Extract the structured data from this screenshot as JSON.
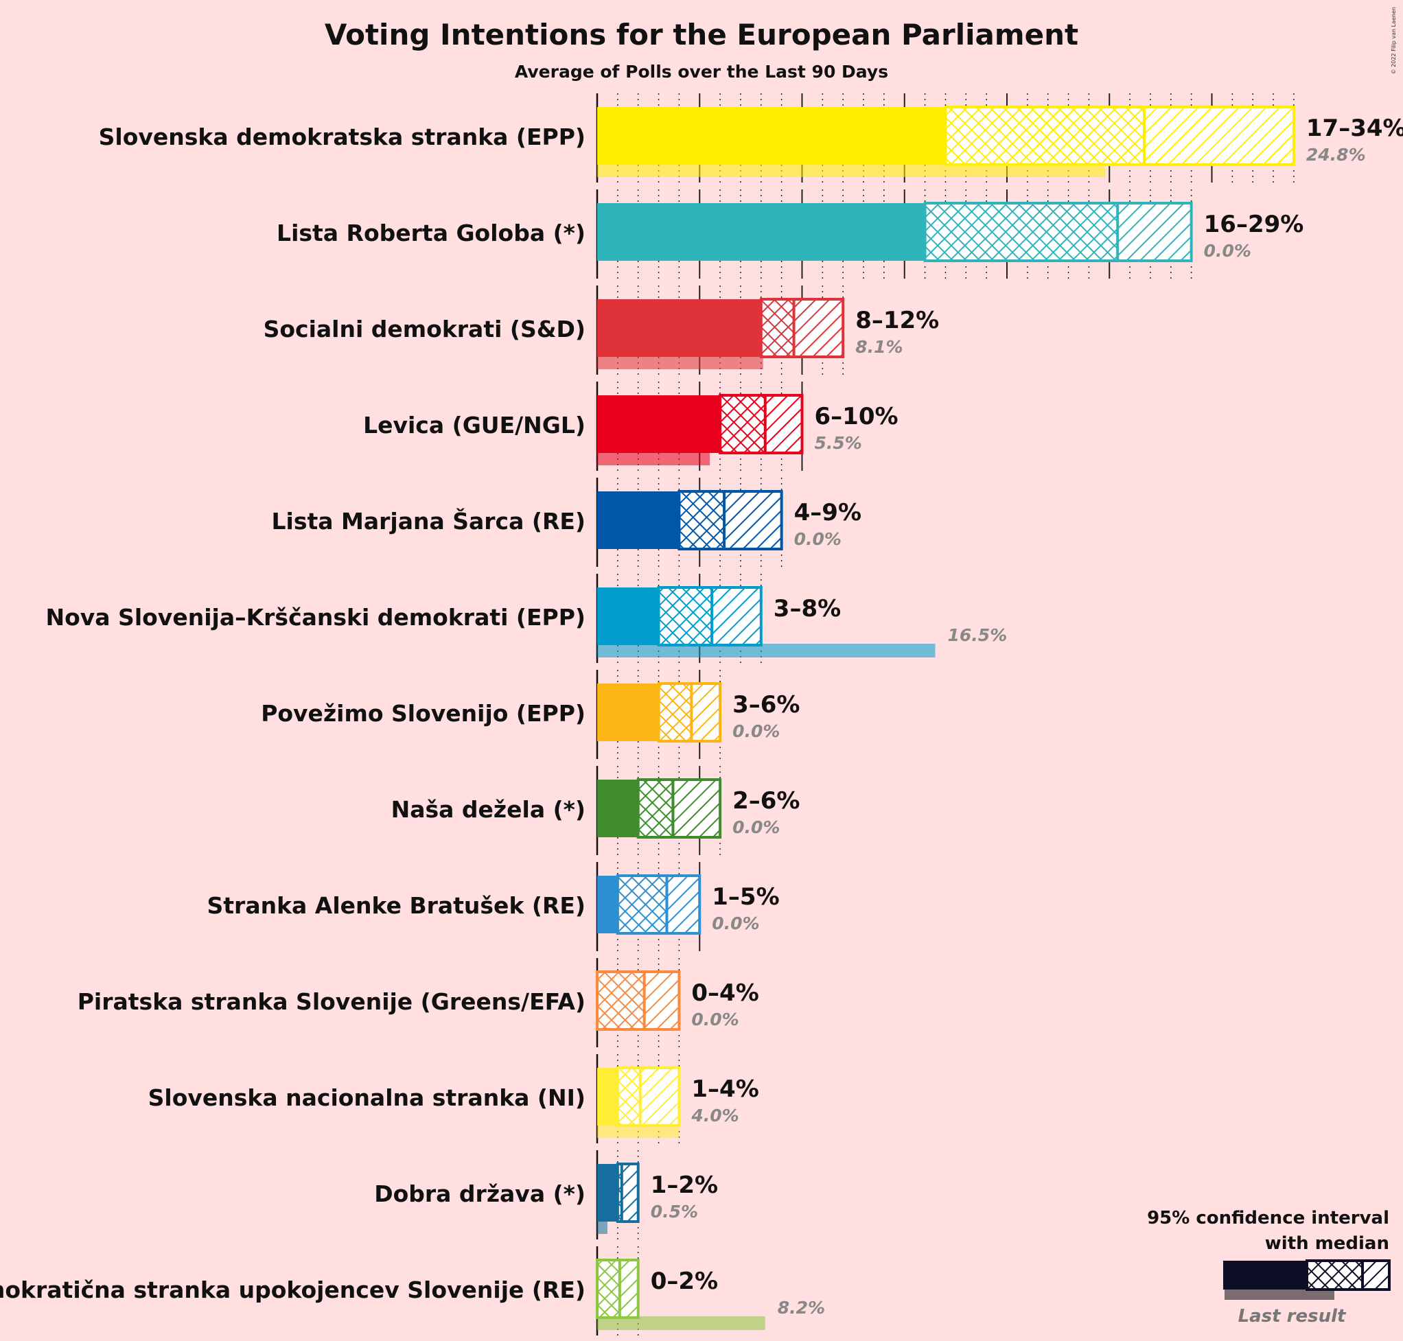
{
  "title": "Voting Intentions for the European Parliament",
  "subtitle": "Average of Polls over the Last 90 Days",
  "copyright": "© 2022 Filip van Laenen",
  "legend": {
    "ci_line1": "95% confidence interval",
    "ci_line2": "with median",
    "last_result": "Last result"
  },
  "chart_data": {
    "type": "bar",
    "orientation": "horizontal",
    "value_unit": "%",
    "series": [
      {
        "party": "Slovenska demokratska stranka (EPP)",
        "low": 17,
        "q_low": 25.7,
        "median": 26.7,
        "q_high": 31.0,
        "high": 34,
        "range_label": "17–34%",
        "last_result": 24.8,
        "last_label": "24.8%",
        "color": "#ffee00"
      },
      {
        "party": "Lista Roberta Goloba (*)",
        "low": 16,
        "q_low": 25.4,
        "median": 25.4,
        "q_high": 25.4,
        "high": 29,
        "range_label": "16–29%",
        "last_result": 0.0,
        "last_label": "0.0%",
        "color": "#30b4bc"
      },
      {
        "party": "Socialni demokrati (S&D)",
        "low": 8,
        "q_low": 9.6,
        "median": 9.6,
        "q_high": 9.6,
        "high": 12,
        "range_label": "8–12%",
        "last_result": 8.1,
        "last_label": "8.1%",
        "color": "#e03339"
      },
      {
        "party": "Levica (GUE/NGL)",
        "low": 6,
        "q_low": 8.2,
        "median": 8.2,
        "q_high": 8.2,
        "high": 10,
        "range_label": "6–10%",
        "last_result": 5.5,
        "last_label": "5.5%",
        "color": "#e8001c"
      },
      {
        "party": "Lista Marjana Šarca (RE)",
        "low": 4,
        "q_low": 6.2,
        "median": 6.2,
        "q_high": 6.2,
        "high": 9,
        "range_label": "4–9%",
        "last_result": 0.0,
        "last_label": "0.0%",
        "color": "#0057a8"
      },
      {
        "party": "Nova Slovenija–Krščanski demokrati (EPP)",
        "low": 3,
        "q_low": 5.6,
        "median": 5.6,
        "q_high": 5.6,
        "high": 8,
        "range_label": "3–8%",
        "last_result": 16.5,
        "last_label": "16.5%",
        "color": "#009ccc"
      },
      {
        "party": "Povežimo Slovenijo (EPP)",
        "low": 3,
        "q_low": 4.6,
        "median": 4.6,
        "q_high": 4.6,
        "high": 6,
        "range_label": "3–6%",
        "last_result": 0.0,
        "last_label": "0.0%",
        "color": "#fbb615"
      },
      {
        "party": "Naša dežela (*)",
        "low": 2,
        "q_low": 3.7,
        "median": 3.7,
        "q_high": 3.7,
        "high": 6,
        "range_label": "2–6%",
        "last_result": 0.0,
        "last_label": "0.0%",
        "color": "#3f8c2f"
      },
      {
        "party": "Stranka Alenke Bratušek (RE)",
        "low": 1,
        "q_low": 3.4,
        "median": 3.4,
        "q_high": 3.4,
        "high": 5,
        "range_label": "1–5%",
        "last_result": 0.0,
        "last_label": "0.0%",
        "color": "#2e90d0"
      },
      {
        "party": "Piratska stranka Slovenije (Greens/EFA)",
        "low": 0,
        "q_low": 2.3,
        "median": 2.3,
        "q_high": 2.3,
        "high": 4,
        "range_label": "0–4%",
        "last_result": 0.0,
        "last_label": "0.0%",
        "color": "#fb8a3e"
      },
      {
        "party": "Slovenska nacionalna stranka (NI)",
        "low": 1,
        "q_low": 2.1,
        "median": 2.1,
        "q_high": 2.1,
        "high": 4,
        "range_label": "1–4%",
        "last_result": 4.0,
        "last_label": "4.0%",
        "color": "#ffee33"
      },
      {
        "party": "Dobra država (*)",
        "low": 1,
        "q_low": 1.2,
        "median": 1.2,
        "q_high": 1.2,
        "high": 2,
        "range_label": "1–2%",
        "last_result": 0.5,
        "last_label": "0.5%",
        "color": "#166e9e"
      },
      {
        "party": "Demokratična stranka upokojencev Slovenije (RE)",
        "low": 0,
        "q_low": 1.1,
        "median": 1.1,
        "q_high": 1.1,
        "high": 2,
        "range_label": "0–2%",
        "last_result": 8.2,
        "last_label": "8.2%",
        "color": "#8dc63f"
      }
    ],
    "axis": {
      "xlim": [
        0,
        34
      ],
      "major_gridlines_every": 5,
      "minor_gridlines_every": 1
    }
  }
}
